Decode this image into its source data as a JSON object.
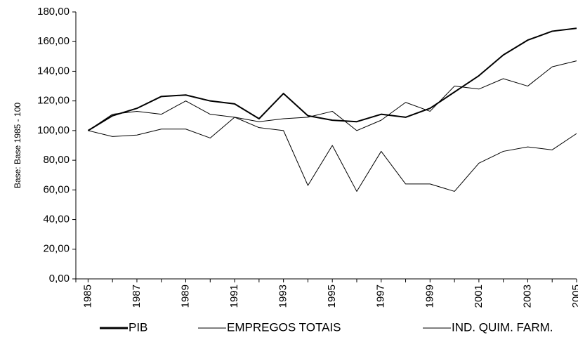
{
  "chart_data": {
    "type": "line",
    "y_label": "Base: Base 1985 - 100",
    "categories": [
      "1985",
      null,
      "1987",
      null,
      "1989",
      null,
      "1991",
      null,
      "1993",
      null,
      "1995",
      null,
      "1997",
      null,
      "1999",
      null,
      "2001",
      null,
      "2003",
      null,
      "2005"
    ],
    "ylim": [
      0,
      180
    ],
    "yticks": [
      {
        "value": 0,
        "label": "0,00"
      },
      {
        "value": 20,
        "label": "20,00"
      },
      {
        "value": 40,
        "label": "40,00"
      },
      {
        "value": 60,
        "label": "60,00"
      },
      {
        "value": 80,
        "label": "80,00"
      },
      {
        "value": 100,
        "label": "100,00"
      },
      {
        "value": 120,
        "label": "120,00"
      },
      {
        "value": 140,
        "label": "140,00"
      },
      {
        "value": 160,
        "label": "160,00"
      },
      {
        "value": 180,
        "label": "180,00"
      }
    ],
    "grid": false,
    "series": [
      {
        "name": "PIB",
        "color": "#000000",
        "width": 2,
        "values": [
          100,
          110,
          115,
          123,
          124,
          120,
          118,
          108,
          125,
          110,
          107,
          106,
          111,
          109,
          115,
          126,
          137,
          151,
          161,
          167,
          169
        ]
      },
      {
        "name": "EMPREGOS TOTAIS",
        "color": "#000000",
        "width": 1,
        "values": [
          100,
          111,
          113,
          111,
          120,
          111,
          109,
          106,
          108,
          109,
          113,
          100,
          107,
          119,
          113,
          130,
          128,
          135,
          130,
          143,
          147
        ]
      },
      {
        "name": "IND. QUIM. FARM.",
        "color": "#000000",
        "width": 1,
        "values": [
          100,
          96,
          97,
          101,
          101,
          95,
          109,
          102,
          100,
          63,
          90,
          59,
          86,
          64,
          64,
          59,
          78,
          86,
          89,
          87,
          98
        ]
      }
    ]
  }
}
